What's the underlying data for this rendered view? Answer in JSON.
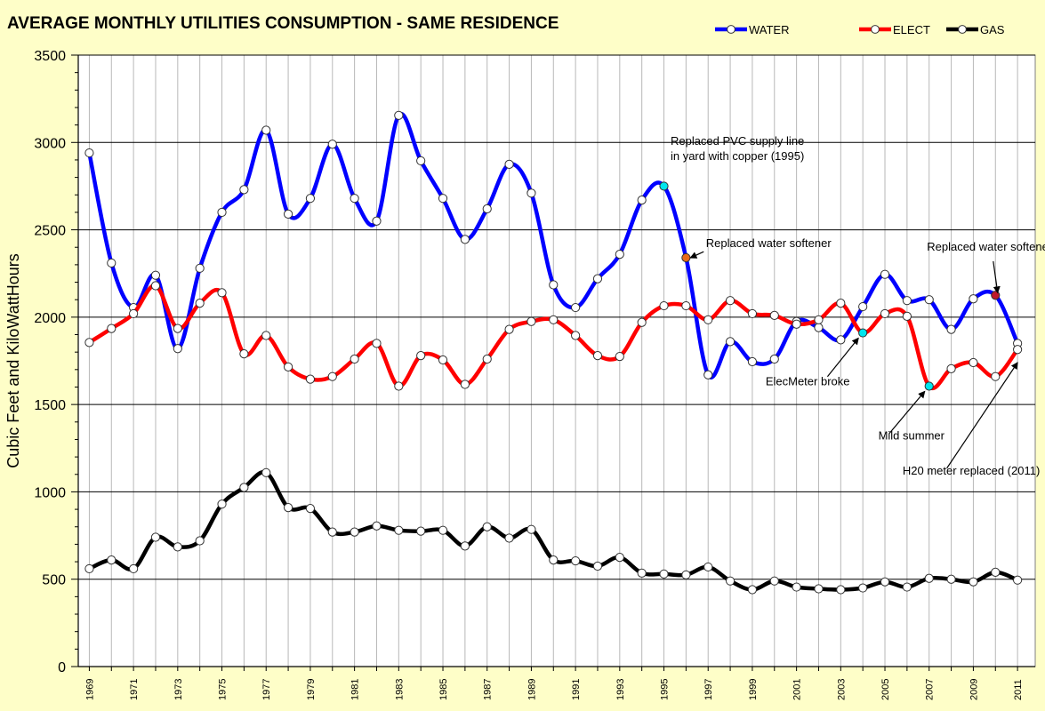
{
  "chart_data": {
    "type": "line",
    "title": "AVERAGE MONTHLY UTILITIES CONSUMPTION  - SAME RESIDENCE",
    "ylabel": "Cubic Feet and KiloWattHours",
    "ylim": [
      0,
      3500
    ],
    "yticks": [
      0,
      500,
      1000,
      1500,
      2000,
      2500,
      3000,
      3500
    ],
    "grid": true,
    "legend_position": "top-right",
    "x": [
      1969,
      1970,
      1971,
      1972,
      1973,
      1974,
      1975,
      1976,
      1977,
      1978,
      1979,
      1980,
      1981,
      1982,
      1983,
      1984,
      1985,
      1986,
      1987,
      1988,
      1989,
      1990,
      1991,
      1992,
      1993,
      1994,
      1995,
      1996,
      1997,
      1998,
      1999,
      2000,
      2001,
      2002,
      2003,
      2004,
      2005,
      2006,
      2007,
      2008,
      2009,
      2010,
      2011
    ],
    "xtick_labels": [
      "1969",
      "1971",
      "1973",
      "1975",
      "1977",
      "1979",
      "1981",
      "1983",
      "1985",
      "1987",
      "1989",
      "1991",
      "1993",
      "1995",
      "1997",
      "1999",
      "2001",
      "2003",
      "2005",
      "2007",
      "2009",
      "2011"
    ],
    "xtick_values": [
      1969,
      1971,
      1973,
      1975,
      1977,
      1979,
      1981,
      1983,
      1985,
      1987,
      1989,
      1991,
      1993,
      1995,
      1997,
      1999,
      2001,
      2003,
      2005,
      2007,
      2009,
      2011
    ],
    "series": [
      {
        "name": "WATER",
        "color": "#0000ff",
        "values": [
          2940,
          2310,
          2055,
          2240,
          1820,
          2280,
          2600,
          2730,
          3070,
          2590,
          2680,
          2990,
          2680,
          2550,
          3155,
          2895,
          2680,
          2445,
          2620,
          2875,
          2710,
          2185,
          2055,
          2220,
          2360,
          2670,
          2750,
          2340,
          1670,
          1860,
          1745,
          1760,
          1975,
          1940,
          1870,
          2060,
          2245,
          2095,
          2100,
          1930,
          2105,
          2125,
          1850
        ]
      },
      {
        "name": "ELECT",
        "color": "#ff0000",
        "values": [
          1855,
          1935,
          2020,
          2180,
          1935,
          2080,
          2140,
          1790,
          1895,
          1715,
          1645,
          1660,
          1760,
          1850,
          1605,
          1780,
          1755,
          1615,
          1760,
          1930,
          1975,
          1985,
          1895,
          1780,
          1775,
          1970,
          2065,
          2065,
          1985,
          2095,
          2020,
          2010,
          1960,
          1985,
          2080,
          1910,
          2020,
          2005,
          1605,
          1705,
          1740,
          1660,
          1815
        ]
      },
      {
        "name": "GAS",
        "color": "#000000",
        "values": [
          560,
          610,
          560,
          740,
          685,
          720,
          930,
          1025,
          1110,
          910,
          905,
          770,
          770,
          805,
          780,
          775,
          780,
          690,
          800,
          735,
          785,
          610,
          605,
          575,
          625,
          535,
          530,
          525,
          570,
          490,
          440,
          490,
          455,
          445,
          440,
          450,
          485,
          455,
          505,
          500,
          485,
          540,
          495
        ]
      }
    ],
    "highlight_points": [
      {
        "series": "WATER",
        "year": 1995,
        "value": 2750,
        "color": "#00e5ee"
      },
      {
        "series": "WATER",
        "year": 1996,
        "value": 2340,
        "color": "#e86a1a"
      },
      {
        "series": "WATER",
        "year": 2010,
        "value": 2125,
        "color": "#c0182c"
      },
      {
        "series": "ELECT",
        "year": 2004,
        "value": 1910,
        "color": "#00e5ee"
      },
      {
        "series": "ELECT",
        "year": 2007,
        "value": 1605,
        "color": "#00e5ee"
      }
    ],
    "annotations": [
      {
        "lines": [
          "Replaced PVC supply line",
          "in yard with copper (1995)"
        ],
        "text_x": 1995.3,
        "text_y": 2985,
        "arrow": false
      },
      {
        "lines": [
          "Replaced water softener"
        ],
        "text_x": 1996.9,
        "text_y": 2400,
        "arrow": true,
        "arrow_from_x": 1996.8,
        "arrow_from_y": 2375,
        "arrow_to_x": 1996.2,
        "arrow_to_y": 2340
      },
      {
        "lines": [
          "Replaced water softener"
        ],
        "text_x": 2006.9,
        "text_y": 2380,
        "arrow": true,
        "arrow_from_x": 2009.9,
        "arrow_from_y": 2320,
        "arrow_to_x": 2010.1,
        "arrow_to_y": 2140
      },
      {
        "lines": [
          "ElecMeter broke"
        ],
        "text_x": 1999.6,
        "text_y": 1610,
        "arrow": true,
        "arrow_from_x": 2002.4,
        "arrow_from_y": 1660,
        "arrow_to_x": 2003.8,
        "arrow_to_y": 1880
      },
      {
        "lines": [
          "Mild summer"
        ],
        "text_x": 2004.7,
        "text_y": 1300,
        "arrow": true,
        "arrow_from_x": 2005.2,
        "arrow_from_y": 1335,
        "arrow_to_x": 2006.8,
        "arrow_to_y": 1575
      },
      {
        "lines": [
          "H20 meter replaced (2011)"
        ],
        "text_x": 2005.8,
        "text_y": 1100,
        "arrow": true,
        "arrow_from_x": 2007.8,
        "arrow_from_y": 1135,
        "arrow_to_x": 2011.0,
        "arrow_to_y": 1740
      }
    ]
  }
}
